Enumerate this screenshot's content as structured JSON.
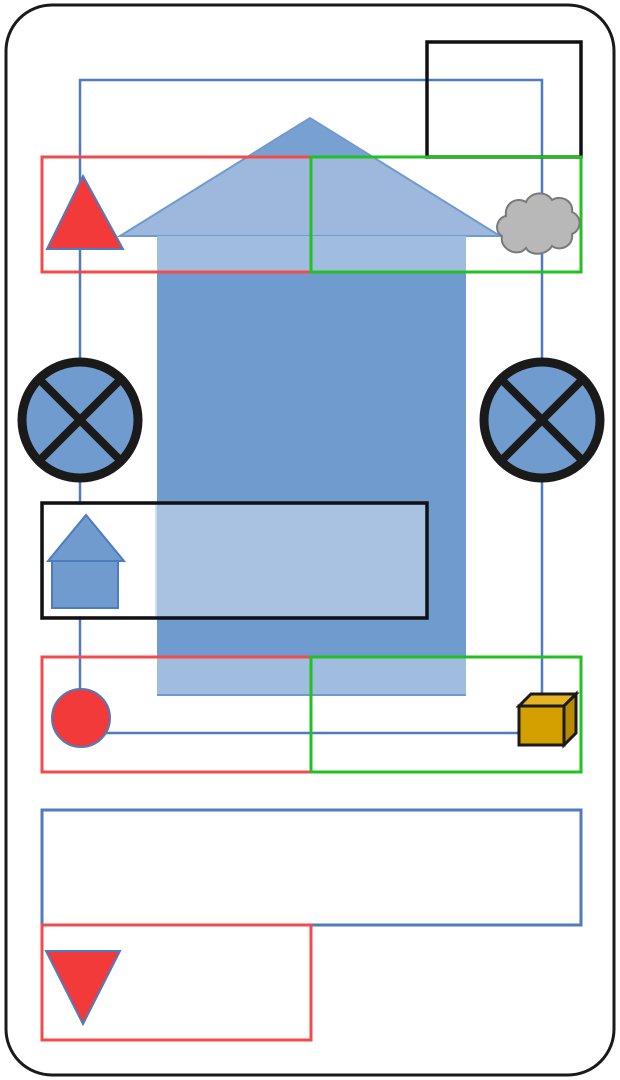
{
  "colors": {
    "background": "#ffffff",
    "frame_stroke": "#1a1a1a",
    "wire_blue": "#4f7bbf",
    "house_big_roof": "#9db8dc",
    "house_big_body": "#6f9bcf",
    "overlay_box_fill": "#a9c2e2",
    "box_red": "#f24b4b",
    "box_green": "#22c022",
    "box_black": "#111111",
    "triangle_red": "#f23a3a",
    "cloud_gray": "#b8b8b8",
    "lamp_fill": "#6f9bcf",
    "lamp_ring": "#1a1a1a",
    "circle_red": "#f23a3a",
    "cube_gold": "#d4a000",
    "mini_house": "#6f9bcf"
  },
  "icons": {
    "top_left_triangle": "warning-triangle-icon",
    "top_right_cloud": "cloud-icon",
    "left_lamp": "lamp-cross-icon",
    "right_lamp": "lamp-cross-icon",
    "mini_house": "house-icon",
    "bottom_left_circle": "red-dot-icon",
    "bottom_right_cube": "cube-icon",
    "bottom_triangle": "down-triangle-icon",
    "big_house": "house-arrow-icon"
  }
}
